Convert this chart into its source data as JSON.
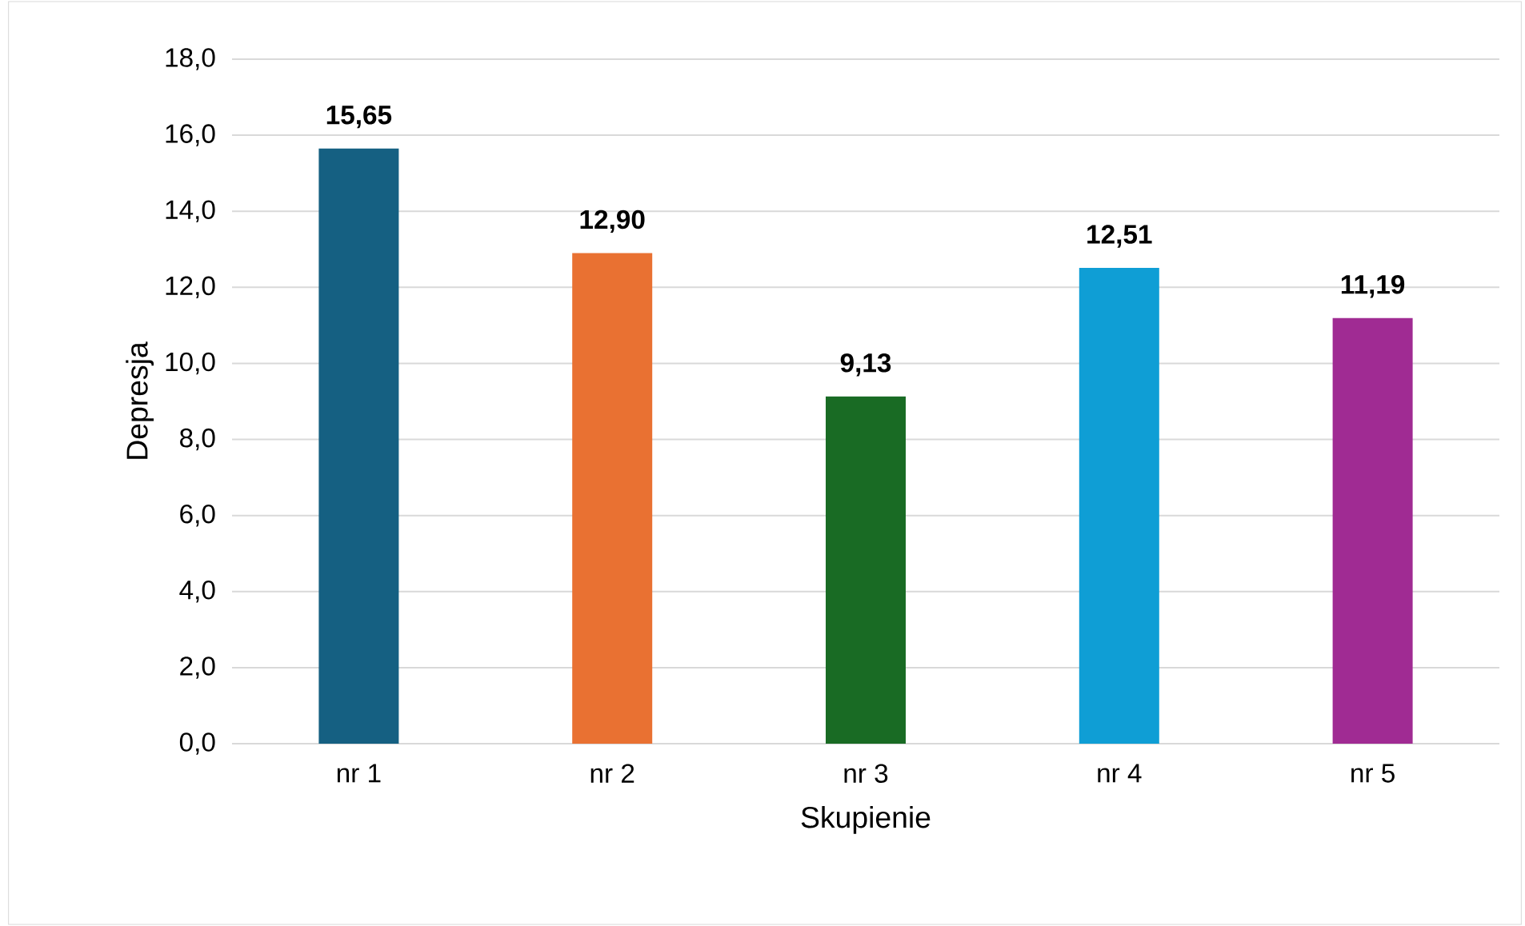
{
  "chart_data": {
    "type": "bar",
    "xlabel": "Skupienie",
    "ylabel": "Depresja",
    "categories": [
      "nr 1",
      "nr 2",
      "nr 3",
      "nr 4",
      "nr 5"
    ],
    "values": [
      15.65,
      12.9,
      9.13,
      12.51,
      11.19
    ],
    "value_labels": [
      "15,65",
      "12,90",
      "9,13",
      "12,51",
      "11,19"
    ],
    "colors": [
      "#156082",
      "#e97132",
      "#196b24",
      "#0f9ed5",
      "#a02b93"
    ],
    "ylim": [
      0,
      18
    ],
    "yticks": [
      {
        "value": 0,
        "label": "0,0"
      },
      {
        "value": 2,
        "label": "2,0"
      },
      {
        "value": 4,
        "label": "4,0"
      },
      {
        "value": 6,
        "label": "6,0"
      },
      {
        "value": 8,
        "label": "8,0"
      },
      {
        "value": 10,
        "label": "10,0"
      },
      {
        "value": 12,
        "label": "12,0"
      },
      {
        "value": 14,
        "label": "14,0"
      },
      {
        "value": 16,
        "label": "16,0"
      },
      {
        "value": 18,
        "label": "18,0"
      }
    ],
    "grid": "y"
  }
}
